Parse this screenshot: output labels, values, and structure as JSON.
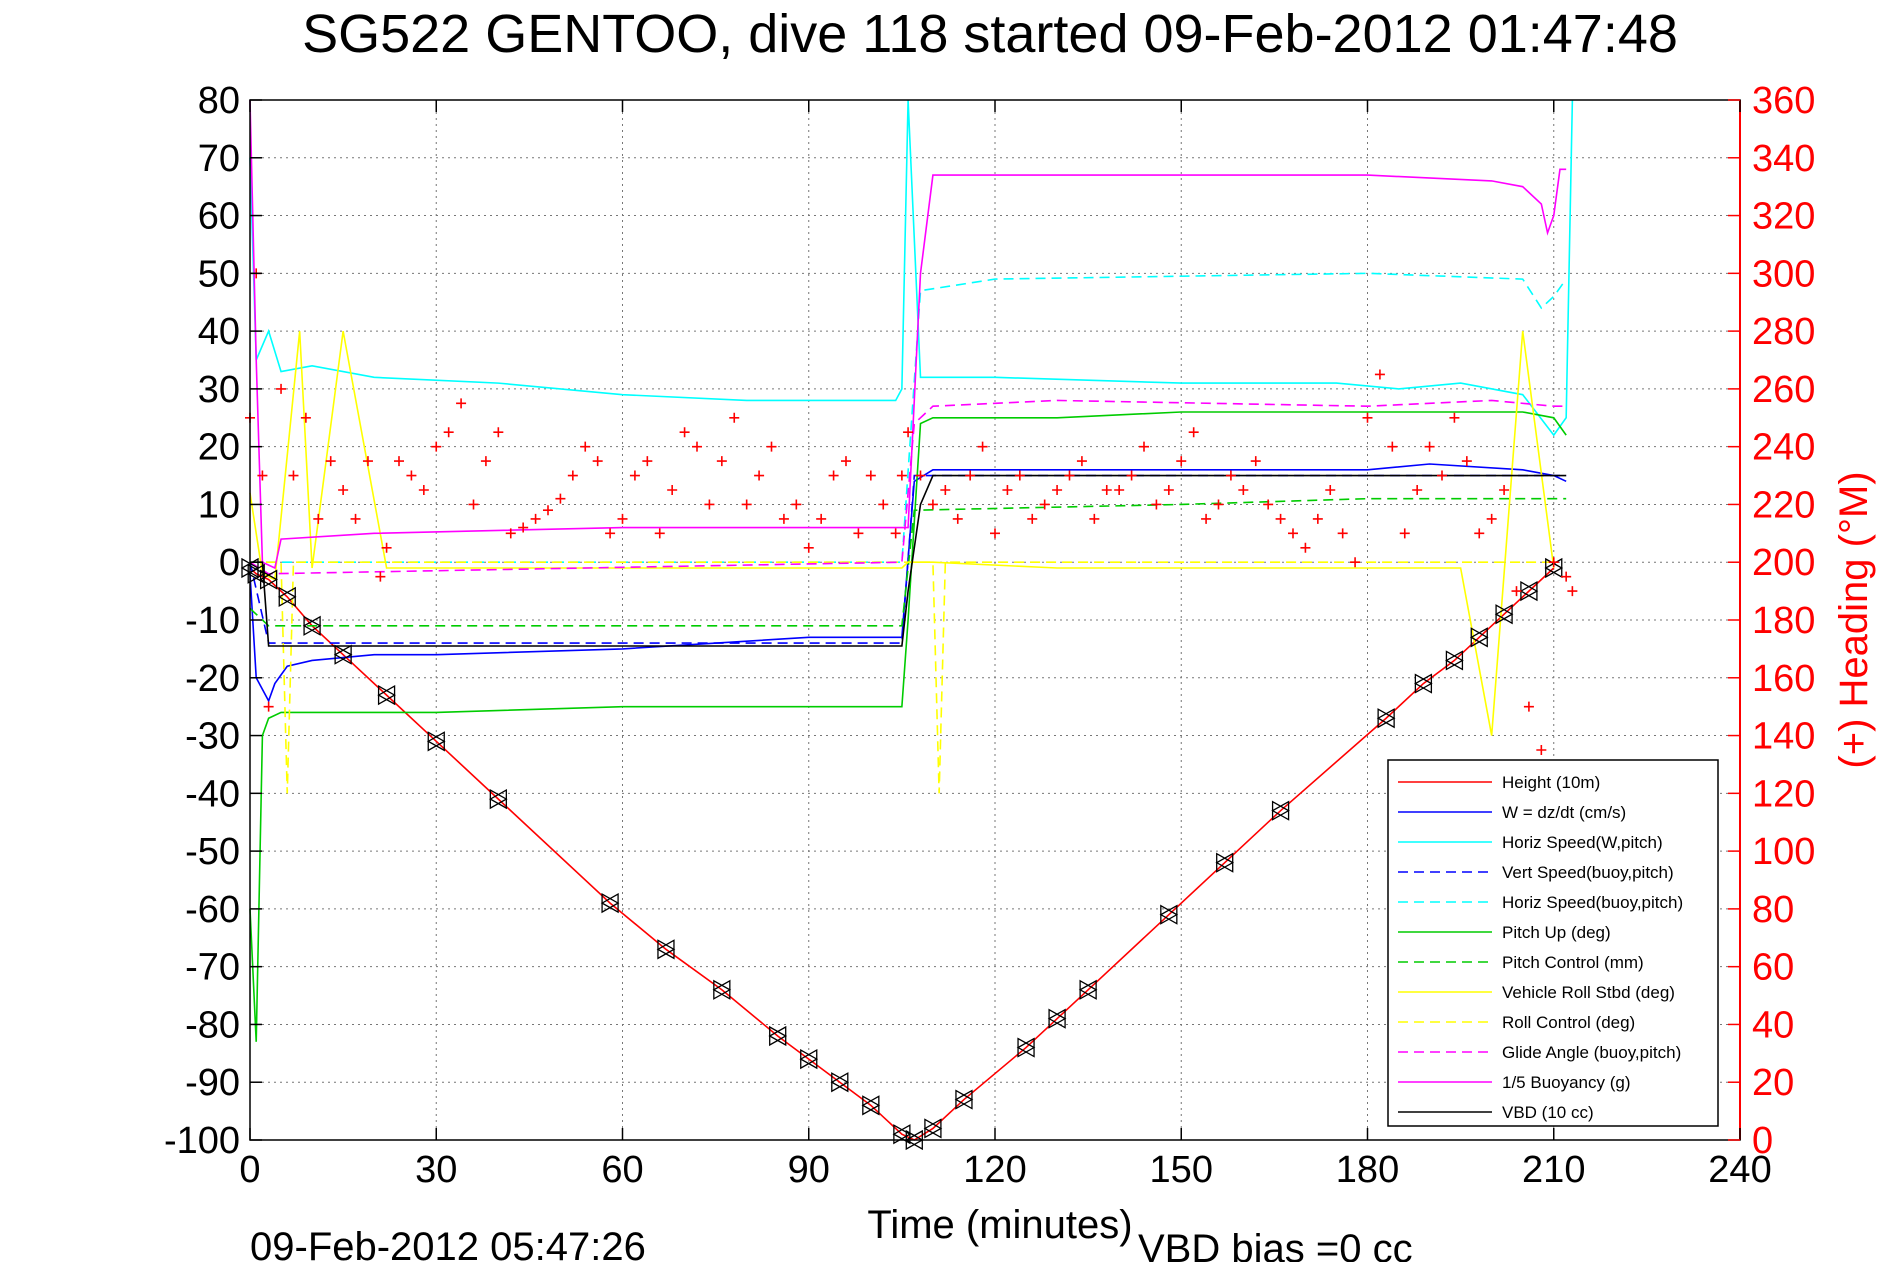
{
  "chart_data": {
    "type": "line",
    "title": "SG522 GENTOO, dive 118 started 09-Feb-2012 01:47:48",
    "xlabel": "Time (minutes)",
    "ylabel": "",
    "y2label": "(+) Heading (°M)",
    "xlim": [
      0,
      240
    ],
    "ylim": [
      -100,
      80
    ],
    "y2lim": [
      0,
      360
    ],
    "xticks": [
      "0",
      "30",
      "60",
      "90",
      "120",
      "150",
      "180",
      "210",
      "240"
    ],
    "yticks": [
      "80",
      "70",
      "60",
      "50",
      "40",
      "30",
      "20",
      "10",
      "0",
      "-10",
      "-20",
      "-30",
      "-40",
      "-50",
      "-60",
      "-70",
      "-80",
      "-90",
      "-100"
    ],
    "y2ticks": [
      "360",
      "340",
      "320",
      "300",
      "280",
      "260",
      "240",
      "220",
      "200",
      "180",
      "160",
      "140",
      "120",
      "100",
      "80",
      "60",
      "40",
      "20",
      "0"
    ],
    "grid": true,
    "legend_position": "bottom-right",
    "footer_time": "09-Feb-2012 05:47:26",
    "footer_note": "VBD bias =0 cc",
    "series": [
      {
        "name": "Height (10m)",
        "color": "#ff0000",
        "style": "solid",
        "marker": "triangle",
        "x": [
          0,
          1,
          3,
          6,
          10,
          15,
          22,
          30,
          40,
          58,
          67,
          76,
          85,
          90,
          95,
          100,
          105,
          107,
          110,
          115,
          125,
          130,
          135,
          148,
          157,
          166,
          183,
          189,
          194,
          198,
          202,
          206,
          210
        ],
        "y": [
          -1,
          -2,
          -3,
          -6,
          -11,
          -16,
          -23,
          -31,
          -41,
          -59,
          -67,
          -74,
          -82,
          -86,
          -90,
          -94,
          -99,
          -100,
          -98,
          -93,
          -84,
          -79,
          -74,
          -61,
          -52,
          -43,
          -27,
          -21,
          -17,
          -13,
          -9,
          -5,
          -1
        ]
      },
      {
        "name": "W = dz/dt (cm/s)",
        "color": "#0000ff",
        "style": "solid",
        "x": [
          0,
          1,
          3,
          4,
          6,
          10,
          20,
          30,
          60,
          90,
          105,
          107,
          110,
          115,
          130,
          150,
          180,
          190,
          205,
          210,
          212
        ],
        "y": [
          -2,
          -20,
          -24,
          -21,
          -18,
          -17,
          -16,
          -16,
          -15,
          -13,
          -13,
          14,
          16,
          16,
          16,
          16,
          16,
          17,
          16,
          15,
          14
        ]
      },
      {
        "name": "Horiz Speed(W,pitch)",
        "color": "#00ffff",
        "style": "solid",
        "x": [
          0,
          1,
          3,
          5,
          10,
          20,
          40,
          60,
          80,
          100,
          104,
          105,
          106,
          108,
          120,
          150,
          175,
          185,
          195,
          205,
          210,
          212,
          213
        ],
        "y": [
          70,
          35,
          40,
          33,
          34,
          32,
          31,
          29,
          28,
          28,
          28,
          30,
          80,
          32,
          32,
          31,
          31,
          30,
          31,
          29,
          22,
          25,
          80
        ]
      },
      {
        "name": "Vert Speed(buoy,pitch)",
        "color": "#0000ff",
        "style": "dashed",
        "x": [
          0,
          3,
          105,
          107,
          210,
          212
        ],
        "y": [
          0,
          -14,
          -14,
          15,
          15,
          15
        ]
      },
      {
        "name": "Horiz Speed(buoy,pitch)",
        "color": "#00ffff",
        "style": "dashed",
        "x": [
          0,
          3,
          105,
          108,
          120,
          180,
          205,
          208,
          210,
          212
        ],
        "y": [
          0,
          0,
          0,
          47,
          49,
          50,
          49,
          44,
          46,
          49
        ]
      },
      {
        "name": "Pitch Up (deg)",
        "color": "#00cc00",
        "style": "solid",
        "x": [
          0,
          1,
          2,
          3,
          5,
          10,
          30,
          60,
          90,
          105,
          106,
          108,
          110,
          130,
          150,
          180,
          205,
          210,
          212
        ],
        "y": [
          -60,
          -83,
          -30,
          -27,
          -26,
          -26,
          -26,
          -25,
          -25,
          -25,
          -10,
          24,
          25,
          25,
          26,
          26,
          26,
          25,
          22
        ]
      },
      {
        "name": "Pitch Control (mm)",
        "color": "#00cc00",
        "style": "dashed",
        "x": [
          0,
          3,
          10,
          60,
          105,
          107,
          150,
          180,
          210,
          212
        ],
        "y": [
          -8,
          -11,
          -11,
          -11,
          -11,
          9,
          10,
          11,
          11,
          11
        ]
      },
      {
        "name": "Vehicle Roll Stbd (deg)",
        "color": "#ffff00",
        "style": "solid",
        "x": [
          0,
          2,
          4,
          8,
          10,
          15,
          22,
          60,
          105,
          106,
          110,
          130,
          150,
          180,
          195,
          200,
          205,
          210
        ],
        "y": [
          12,
          -2,
          -3,
          40,
          -1,
          40,
          -1,
          -1,
          -1,
          0,
          0,
          -1,
          -1,
          -1,
          -1,
          -30,
          40,
          -1
        ]
      },
      {
        "name": "Roll Control (deg)",
        "color": "#ffff00",
        "style": "dashed",
        "x": [
          0,
          5,
          6,
          7,
          60,
          105,
          106,
          110,
          111,
          112,
          200,
          210
        ],
        "y": [
          0,
          0,
          -40,
          0,
          0,
          0,
          0,
          0,
          -40,
          0,
          0,
          0
        ]
      },
      {
        "name": "Glide Angle (buoy,pitch)",
        "color": "#ff00ff",
        "style": "dashed",
        "x": [
          0,
          3,
          105,
          107,
          110,
          130,
          180,
          200,
          210,
          212
        ],
        "y": [
          0,
          -2,
          0,
          24,
          27,
          28,
          27,
          28,
          27,
          27
        ]
      },
      {
        "name": "1/5 Buoyancy (g)",
        "color": "#ff00ff",
        "style": "solid",
        "x": [
          0,
          1,
          2,
          4,
          5,
          20,
          60,
          100,
          105,
          106,
          108,
          110,
          120,
          150,
          180,
          200,
          205,
          208,
          209,
          210,
          211,
          212
        ],
        "y": [
          80,
          35,
          0,
          -1,
          4,
          5,
          6,
          6,
          6,
          6,
          50,
          67,
          67,
          67,
          67,
          66,
          65,
          62,
          57,
          60,
          68,
          68
        ]
      },
      {
        "name": "VBD (10 cc)",
        "color": "#000000",
        "style": "solid",
        "x": [
          0,
          2,
          3,
          105,
          106,
          108,
          110,
          212
        ],
        "y": [
          0,
          0,
          -14.5,
          -14.5,
          -5,
          10,
          15,
          15
        ]
      }
    ],
    "heading_series": {
      "axis": "right",
      "color": "#ff0000",
      "marker": "plus",
      "x": [
        0,
        1,
        2,
        3,
        5,
        7,
        9,
        11,
        13,
        15,
        17,
        19,
        21,
        22,
        24,
        26,
        28,
        30,
        32,
        34,
        36,
        38,
        40,
        42,
        44,
        46,
        48,
        50,
        52,
        54,
        56,
        58,
        60,
        62,
        64,
        66,
        68,
        70,
        72,
        74,
        76,
        78,
        80,
        82,
        84,
        86,
        88,
        90,
        92,
        94,
        96,
        98,
        100,
        102,
        104,
        105,
        106,
        108,
        110,
        112,
        114,
        116,
        118,
        120,
        122,
        124,
        126,
        128,
        130,
        132,
        134,
        136,
        138,
        140,
        142,
        144,
        146,
        148,
        150,
        152,
        154,
        156,
        158,
        160,
        162,
        164,
        166,
        168,
        170,
        172,
        174,
        176,
        178,
        180,
        182,
        184,
        186,
        188,
        190,
        192,
        194,
        196,
        198,
        200,
        202,
        204,
        206,
        208,
        210,
        212,
        213
      ],
      "y": [
        250,
        300,
        230,
        150,
        260,
        230,
        250,
        215,
        235,
        225,
        215,
        235,
        195,
        205,
        235,
        230,
        225,
        240,
        245,
        255,
        220,
        235,
        245,
        210,
        212,
        215,
        218,
        222,
        230,
        240,
        235,
        210,
        215,
        230,
        235,
        210,
        225,
        245,
        240,
        220,
        235,
        250,
        220,
        230,
        240,
        215,
        220,
        205,
        215,
        230,
        235,
        210,
        230,
        220,
        210,
        230,
        245,
        230,
        220,
        225,
        215,
        230,
        240,
        210,
        225,
        230,
        215,
        220,
        225,
        230,
        235,
        215,
        225,
        225,
        230,
        240,
        220,
        225,
        235,
        245,
        215,
        220,
        230,
        225,
        235,
        220,
        215,
        210,
        205,
        215,
        225,
        210,
        200,
        250,
        265,
        240,
        210,
        225,
        240,
        230,
        250,
        235,
        210,
        215,
        225,
        190,
        150,
        135,
        200,
        195,
        190
      ]
    }
  }
}
